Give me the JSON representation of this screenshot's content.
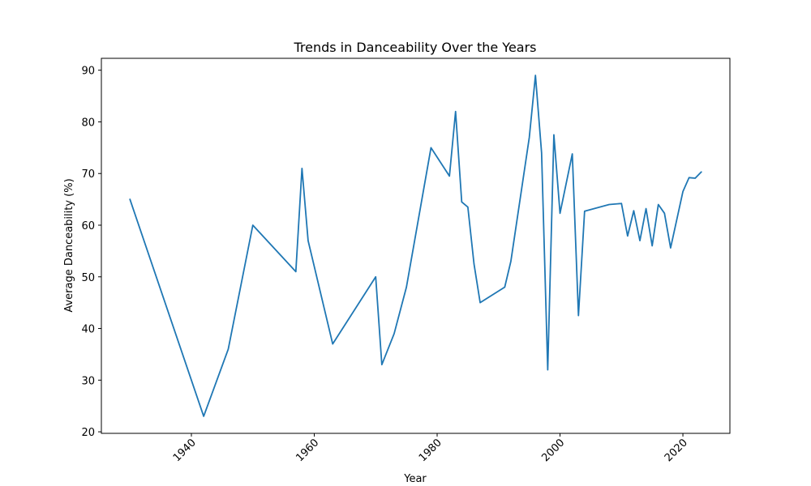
{
  "chart_data": {
    "type": "line",
    "title": "Trends in Danceability Over the Years",
    "xlabel": "Year",
    "ylabel": "Average Danceability (%)",
    "xlim": [
      1925.35,
      2027.65
    ],
    "ylim": [
      19.7,
      92.3
    ],
    "x_ticks": [
      1940,
      1960,
      1980,
      2000,
      2020
    ],
    "y_ticks": [
      20,
      30,
      40,
      50,
      60,
      70,
      80,
      90
    ],
    "grid": false,
    "color": "#1f77b4",
    "series": [
      {
        "x": [
          1930,
          1942,
          1946,
          1950,
          1957,
          1958,
          1959,
          1963,
          1970,
          1971,
          1973,
          1975,
          1979,
          1982,
          1983,
          1984,
          1985,
          1986,
          1987,
          1991,
          1992,
          1995,
          1996,
          1997,
          1998,
          1999,
          2000,
          2002,
          2003,
          2004,
          2008,
          2010,
          2011,
          2012,
          2013,
          2014,
          2015,
          2016,
          2017,
          2018,
          2020,
          2021,
          2022,
          2023
        ],
        "values": [
          65.0,
          23.0,
          36.0,
          60.0,
          51.0,
          71.0,
          57.0,
          37.0,
          50.0,
          33.0,
          39.0,
          48.0,
          75.0,
          69.5,
          82.0,
          64.5,
          63.5,
          52.5,
          45.0,
          48.0,
          53.0,
          77.0,
          89.0,
          74.0,
          32.0,
          77.5,
          62.3,
          73.8,
          42.5,
          62.7,
          64.0,
          64.2,
          57.9,
          62.8,
          57.0,
          63.2,
          56.0,
          64.0,
          62.3,
          55.6,
          66.5,
          69.2,
          69.1,
          70.3
        ]
      }
    ]
  }
}
